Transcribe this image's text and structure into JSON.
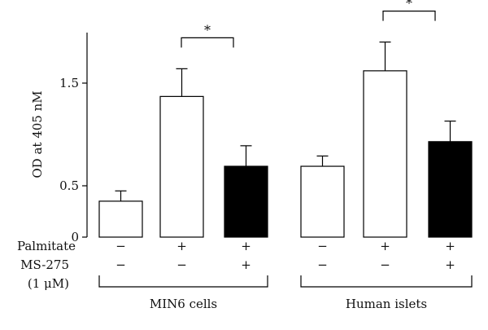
{
  "chart_data": {
    "type": "bar",
    "ylabel": "OD at 405 nM",
    "ylim": [
      0,
      2.0
    ],
    "yticks": [
      {
        "value": 0,
        "label": "0"
      },
      {
        "value": 0.5,
        "label": "0.5"
      },
      {
        "value": 1.5,
        "label": "1.5"
      }
    ],
    "groups": [
      {
        "label": "MIN6 cells",
        "bars": [
          {
            "value": 0.35,
            "error": 0.1,
            "fill": "white",
            "palmitate": "−",
            "ms275": "−"
          },
          {
            "value": 1.37,
            "error": 0.27,
            "fill": "white",
            "palmitate": "+",
            "ms275": "−"
          },
          {
            "value": 0.69,
            "error": 0.2,
            "fill": "black",
            "palmitate": "+",
            "ms275": "+"
          }
        ],
        "significance": {
          "from": 1,
          "to": 2,
          "label": "*"
        }
      },
      {
        "label": "Human islets",
        "bars": [
          {
            "value": 0.69,
            "error": 0.1,
            "fill": "white",
            "palmitate": "−",
            "ms275": "−"
          },
          {
            "value": 1.62,
            "error": 0.28,
            "fill": "white",
            "palmitate": "+",
            "ms275": "−"
          },
          {
            "value": 0.93,
            "error": 0.2,
            "fill": "black",
            "palmitate": "+",
            "ms275": "+"
          }
        ],
        "significance": {
          "from": 1,
          "to": 2,
          "label": "*"
        }
      }
    ],
    "row_labels": {
      "palmitate": "Palmitate",
      "ms275_line1": "MS-275",
      "ms275_line2": "(1 μM)"
    },
    "colors": {
      "black_bar": "#000000",
      "white_bar": "#ffffff",
      "stroke": "#000000"
    }
  }
}
